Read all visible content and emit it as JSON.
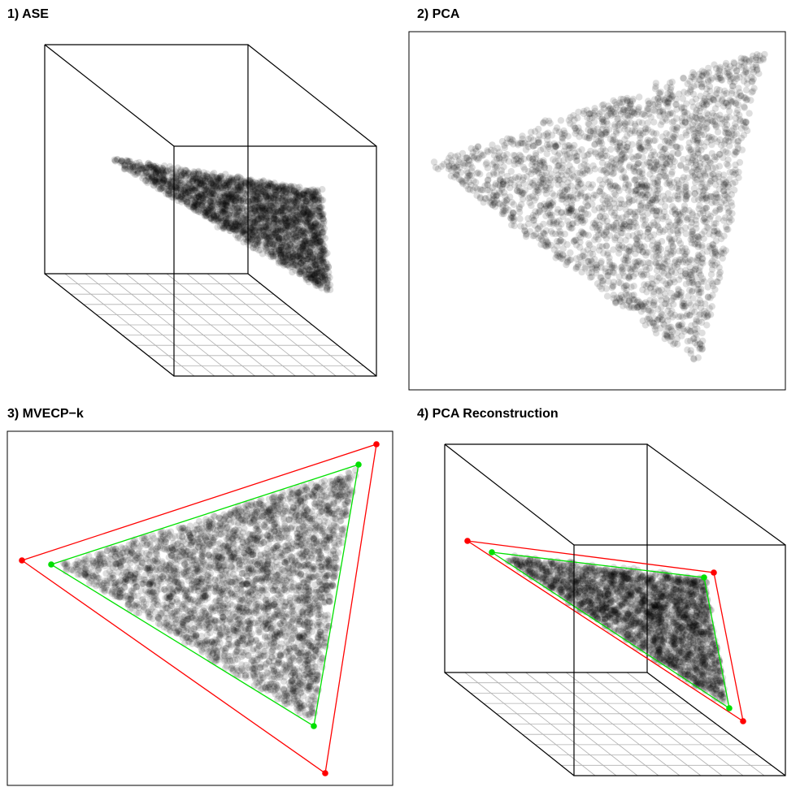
{
  "panels": [
    {
      "title": "1) ASE"
    },
    {
      "title": "2) PCA"
    },
    {
      "title": "3) MVECP−k"
    },
    {
      "title": "4) PCA Reconstruction"
    }
  ],
  "chart_data": [
    {
      "type": "scatter",
      "title": "1) ASE",
      "projection": "3d-box",
      "series": [],
      "x": [],
      "y": [],
      "grid": "floor",
      "legend": "none"
    },
    {
      "type": "scatter",
      "title": "2) PCA",
      "series": [],
      "x": [],
      "y": [],
      "legend": "none"
    },
    {
      "type": "scatter",
      "title": "3) MVECP−k",
      "series": [],
      "outer_simplex_color": "#ff0000",
      "inner_simplex_color": "#00e000",
      "legend": "none"
    },
    {
      "type": "scatter",
      "title": "4) PCA Reconstruction",
      "projection": "3d-box",
      "outer_simplex_color": "#ff0000",
      "inner_simplex_color": "#00e000",
      "grid": "floor",
      "legend": "none"
    }
  ],
  "colors": {
    "points": "#000000",
    "outer": "#ff0000",
    "inner": "#00e000",
    "floor_grid": "#b0b0b0"
  }
}
